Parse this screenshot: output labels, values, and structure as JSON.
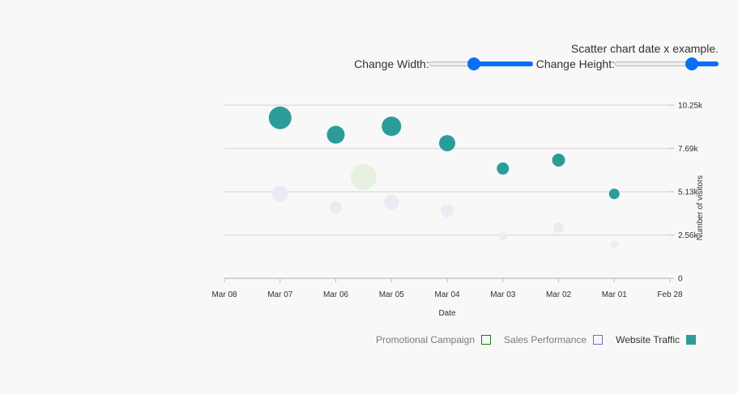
{
  "title": ".Scatter chart date x example",
  "controls": {
    "height_label": ":Change Height",
    "width_label": ":Change Width",
    "height_value": 0.78,
    "width_value": 0.42
  },
  "legend": [
    {
      "label": "Promotional Campaign",
      "color": "#107c10",
      "active": false
    },
    {
      "label": "Sales Performance",
      "color": "#8764b8",
      "active": false
    },
    {
      "label": "Website Traffic",
      "color": "#2a9d9a",
      "active": true
    }
  ],
  "chart_data": {
    "type": "scatter",
    "xlabel": "Date",
    "ylabel": "Number of visitors",
    "x_ticks": [
      "Mar 08",
      "Mar 07",
      "Mar 06",
      "Mar 05",
      "Mar 04",
      "Mar 03",
      "Mar 02",
      "Mar 01",
      "Feb 28"
    ],
    "y_ticks": [
      "0",
      "2.56k",
      "5.13k",
      "7.69k",
      "10.25k"
    ],
    "x_range": [
      "2018-03-08",
      "2018-02-28"
    ],
    "ylim": [
      0,
      10250
    ],
    "grid": true,
    "legend_position": "bottom-right",
    "series": [
      {
        "name": "Website Traffic",
        "color": "#2a9d9a",
        "points": [
          {
            "x": "2018-03-07",
            "y": 9500,
            "size": 28
          },
          {
            "x": "2018-03-06",
            "y": 8500,
            "size": 22
          },
          {
            "x": "2018-03-05",
            "y": 9000,
            "size": 24
          },
          {
            "x": "2018-03-04",
            "y": 8000,
            "size": 20
          },
          {
            "x": "2018-03-03",
            "y": 6500,
            "size": 15
          },
          {
            "x": "2018-03-02",
            "y": 7000,
            "size": 16
          },
          {
            "x": "2018-03-01",
            "y": 5000,
            "size": 13
          }
        ]
      },
      {
        "name": "Sales Performance",
        "color": "#eceaf4",
        "points": [
          {
            "x": "2018-03-07",
            "y": 5000,
            "size": 20
          },
          {
            "x": "2018-03-06",
            "y": 4200,
            "size": 15
          },
          {
            "x": "2018-03-05",
            "y": 4500,
            "size": 18
          },
          {
            "x": "2018-03-04",
            "y": 4000,
            "size": 16
          },
          {
            "x": "2018-03-03",
            "y": 2500,
            "size": 10
          },
          {
            "x": "2018-03-02",
            "y": 3000,
            "size": 13
          },
          {
            "x": "2018-03-01",
            "y": 2000,
            "size": 9
          }
        ]
      },
      {
        "name": "Promotional Campaign",
        "color": "#e6f1e1",
        "points": [
          {
            "x": "2018-03-05T12:00",
            "y": 6000,
            "size": 32
          }
        ]
      }
    ]
  }
}
